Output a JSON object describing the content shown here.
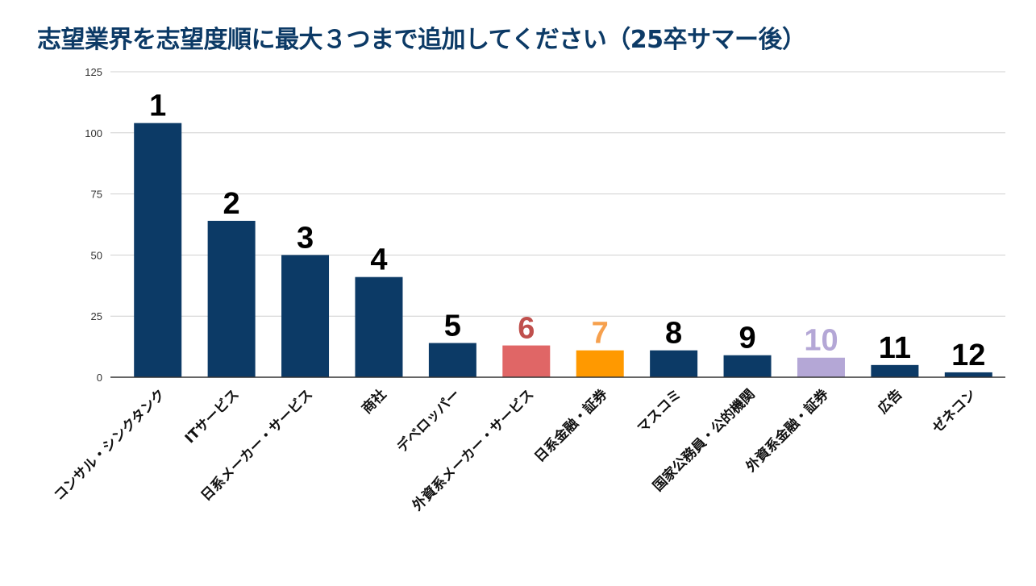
{
  "title": "志望業界を志望度順に最大３つまで追加してください（25卒サマー後）",
  "chart_data": {
    "type": "bar",
    "title": "志望業界を志望度順に最大３つまで追加してください（25卒サマー後）",
    "categories": [
      "コンサル・シンクタンク",
      "ITサービス",
      "日系メーカー・サービス",
      "商社",
      "デベロッパー",
      "外資系メーカー・サービス",
      "日系金融・証券",
      "マスコミ",
      "国家公務員・公的機関",
      "外資系金融・証券",
      "広告",
      "ゼネコン"
    ],
    "values": [
      104,
      64,
      50,
      41,
      14,
      13,
      11,
      11,
      9,
      8,
      5,
      2
    ],
    "rank_labels": [
      "1",
      "2",
      "3",
      "4",
      "5",
      "6",
      "7",
      "8",
      "9",
      "10",
      "11",
      "12"
    ],
    "bar_colors": [
      "#0c3a66",
      "#0c3a66",
      "#0c3a66",
      "#0c3a66",
      "#0c3a66",
      "#e06666",
      "#ff9900",
      "#0c3a66",
      "#0c3a66",
      "#b4a7d6",
      "#0c3a66",
      "#0c3a66"
    ],
    "rank_colors": [
      "#000000",
      "#000000",
      "#000000",
      "#000000",
      "#000000",
      "#c0504d",
      "#f6a04d",
      "#000000",
      "#000000",
      "#b4a7d6",
      "#000000",
      "#000000"
    ],
    "y_ticks": [
      0,
      25,
      50,
      75,
      100,
      125
    ],
    "ylim": [
      0,
      125
    ],
    "grid": true,
    "legend": "none",
    "xlabel": "",
    "ylabel": ""
  }
}
